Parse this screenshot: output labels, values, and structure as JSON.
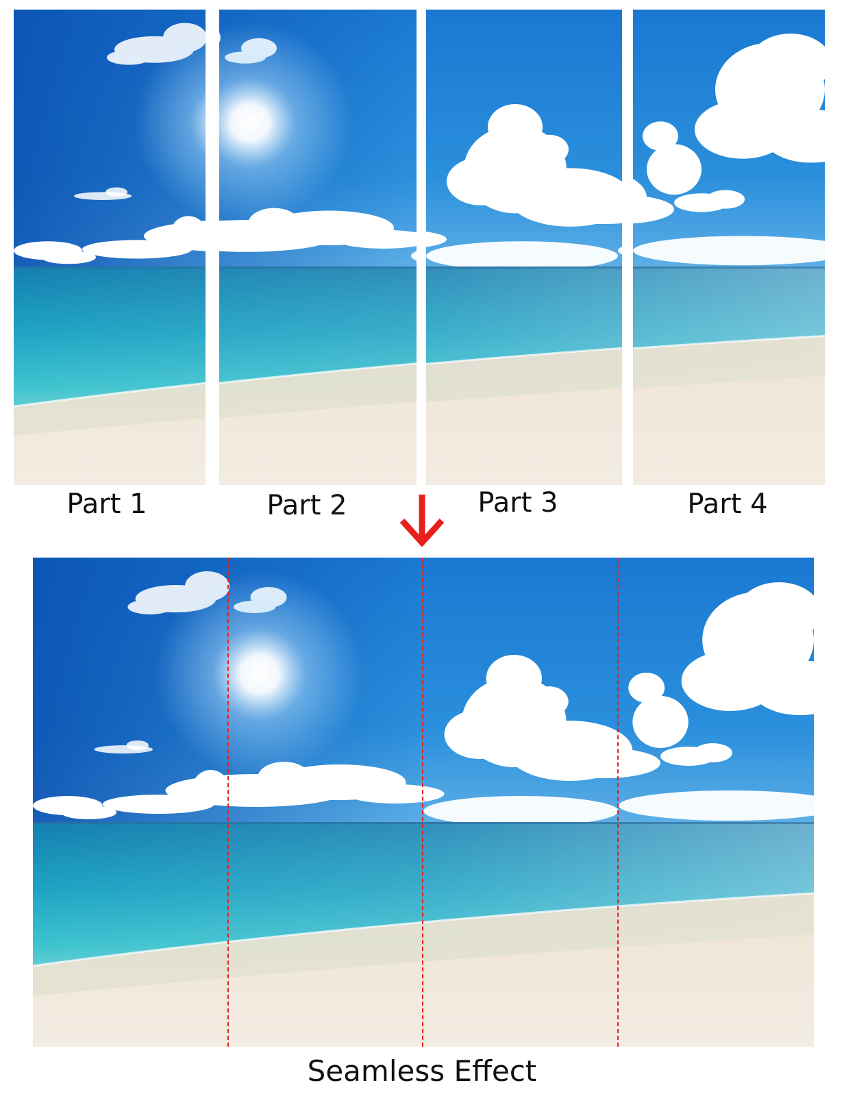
{
  "parts": [
    {
      "label": "Part 1"
    },
    {
      "label": "Part 2"
    },
    {
      "label": "Part 3"
    },
    {
      "label": "Part 4"
    }
  ],
  "result": {
    "caption": "Seamless Effect"
  },
  "colors": {
    "sky_top": "#0a4fb0",
    "sky_mid": "#1f82d6",
    "sky_horizon": "#b8def4",
    "sea_deep": "#137fb0",
    "sea_turquoise": "#3ec3cf",
    "sand": "#efe6d8",
    "seam_line": "#e8201c",
    "arrow": "#e8201c"
  },
  "icons": {
    "arrow": "arrow-down-icon"
  }
}
